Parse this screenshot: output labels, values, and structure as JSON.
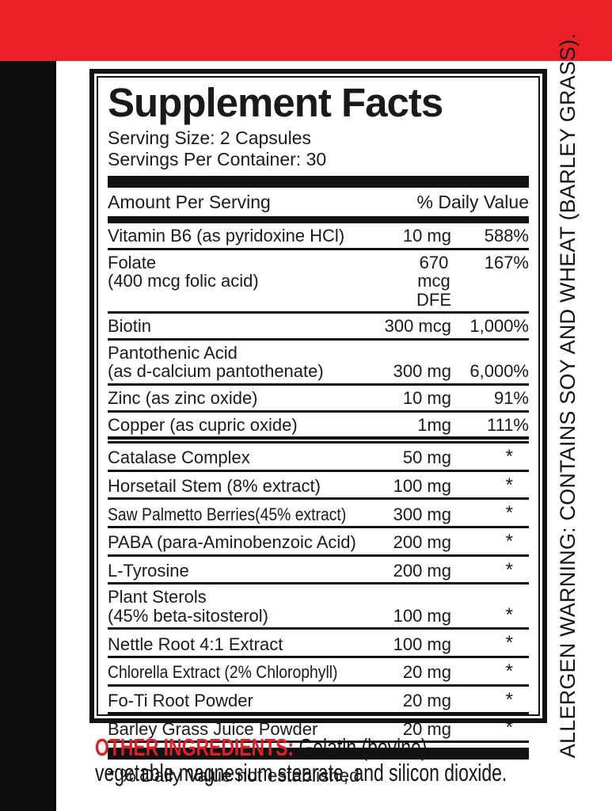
{
  "colors": {
    "top_bar_red": "#ED2027",
    "side_bar_black": "#0D0D0D",
    "other_ingredients_label_red": "#DF1F26",
    "text_black": "#1A1A1A"
  },
  "panel": {
    "title": "Supplement Facts",
    "serving_size": "Serving Size: 2 Capsules",
    "servings_per_container": "Servings Per Container: 30",
    "header": {
      "left": "Amount Per Serving",
      "right": "% Daily Value"
    },
    "rows": [
      {
        "name": "Vitamin B6 (as pyridoxine HCl)",
        "amount": "10 mg",
        "dv": "588%"
      },
      {
        "name": "Folate\n (400 mcg folic acid)",
        "amount": "670\nmcg\nDFE",
        "dv": "167%"
      },
      {
        "name": "Biotin",
        "amount": "300 mcg",
        "dv": "1,000%"
      },
      {
        "name": "Pantothenic Acid\n(as d-calcium pantothenate)",
        "amount": "300 mg",
        "dv": "6,000%"
      },
      {
        "name": "Zinc (as zinc oxide)",
        "amount": "10 mg",
        "dv": "91%"
      },
      {
        "name": "Copper (as cupric oxide)",
        "amount": "1mg",
        "dv": "111%",
        "separator_after": "double"
      },
      {
        "name": "Catalase Complex",
        "amount": "50 mg",
        "dv": "*"
      },
      {
        "name": "Horsetail Stem (8% extract)",
        "amount": "100 mg",
        "dv": "*"
      },
      {
        "name": "Saw Palmetto Berries(45% extract)",
        "amount": "300 mg",
        "dv": "*"
      },
      {
        "name": "PABA (para-Aminobenzoic Acid)",
        "amount": "200 mg",
        "dv": "*"
      },
      {
        "name": "L-Tyrosine",
        "amount": "200 mg",
        "dv": "*"
      },
      {
        "name": "Plant Sterols\n(45% beta-sitosterol)",
        "amount": "100 mg",
        "dv": "*"
      },
      {
        "name": "Nettle Root 4:1 Extract",
        "amount": "100 mg",
        "dv": "*"
      },
      {
        "name": "Chlorella Extract (2% Chlorophyll)",
        "amount": "20 mg",
        "dv": "*"
      },
      {
        "name": "Fo-Ti Root Powder",
        "amount": "20 mg",
        "dv": "*"
      },
      {
        "name": "Barley Grass Juice Powder",
        "amount": "20 mg",
        "dv": "*"
      }
    ],
    "footnote": "* % Daily Value not established"
  },
  "allergen_warning": "ALLERGEN WARNING: CONTAINS SOY AND WHEAT (BARLEY GRASS).",
  "other_ingredients": {
    "label": "OTHER INGREDIENTS:",
    "line1_rest": " Gelatin (bovine),",
    "line2": "vegetable magnesium stearate, and silicon dioxide."
  }
}
